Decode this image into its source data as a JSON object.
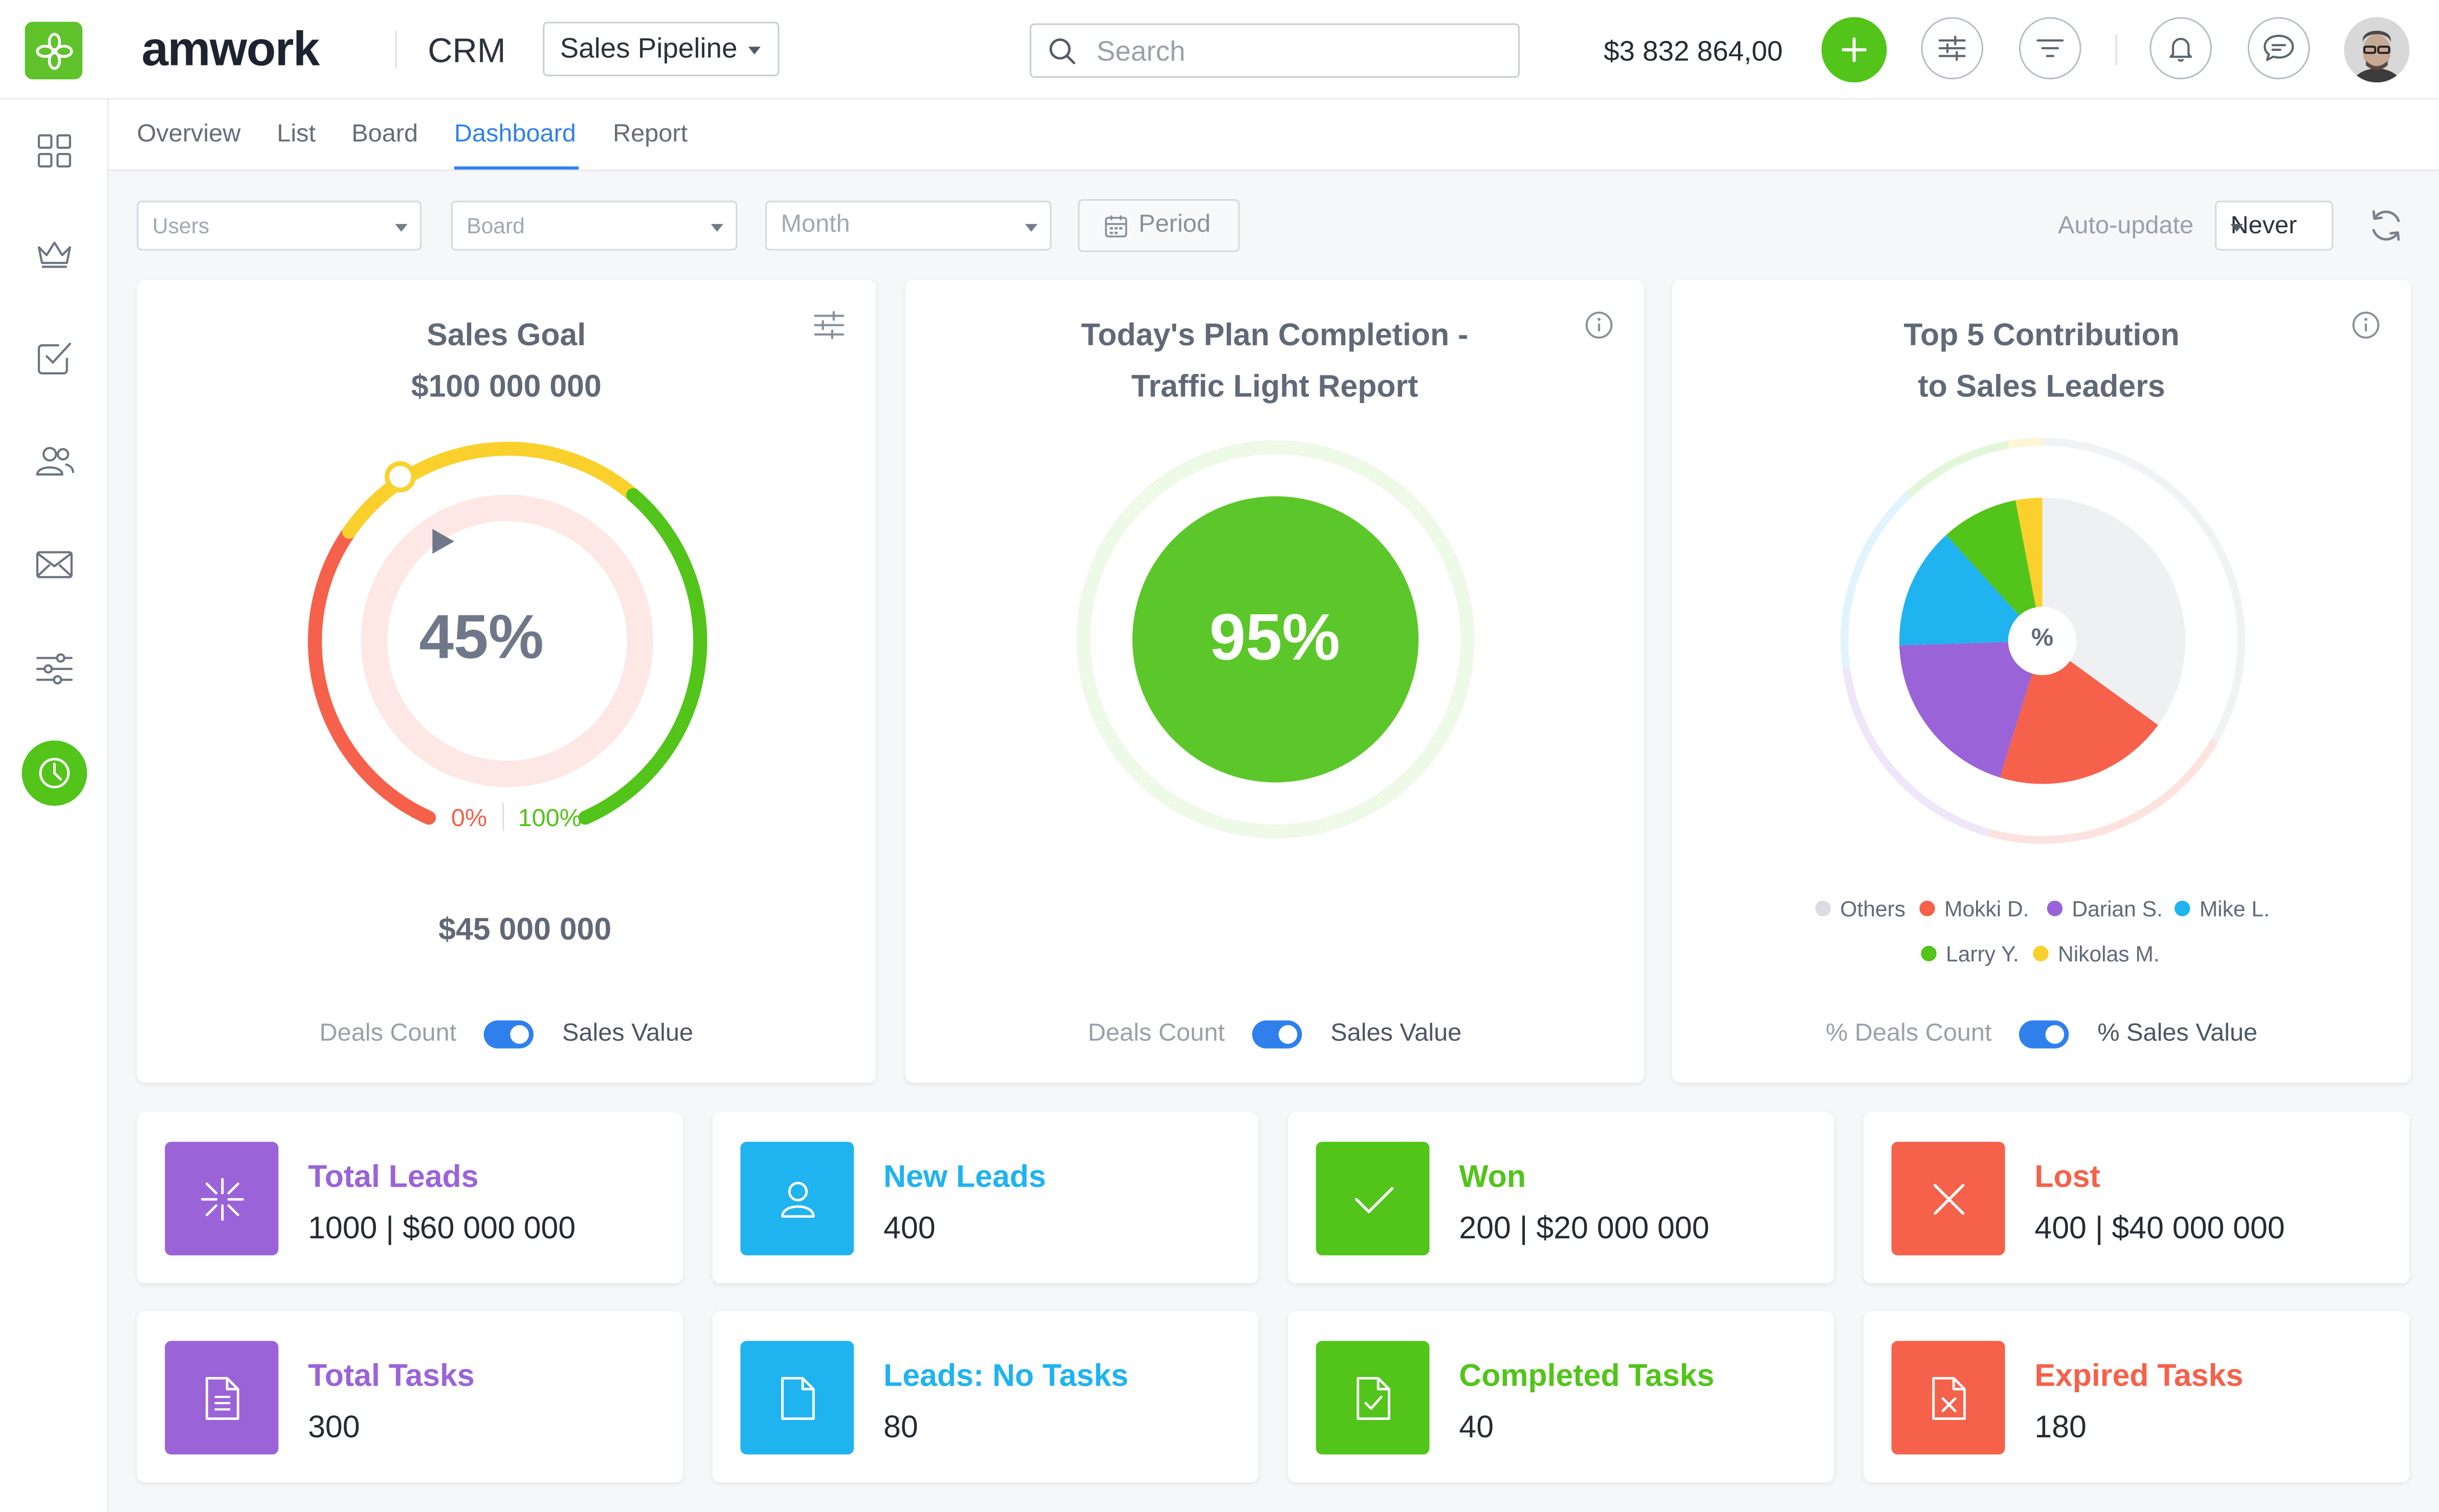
{
  "app": {
    "brand": "amwork",
    "name": "CRM",
    "pipeline": "Sales Pipeline",
    "search_placeholder": "Search",
    "balance": "$3 832 864,00"
  },
  "sidebar": {
    "items": [
      {
        "icon": "dashboard-grid-icon",
        "active": false
      },
      {
        "icon": "crown-icon",
        "active": false
      },
      {
        "icon": "checkbox-icon",
        "active": false
      },
      {
        "icon": "users-icon",
        "active": false
      },
      {
        "icon": "mail-icon",
        "active": false
      },
      {
        "icon": "settings-sliders-icon",
        "active": false
      },
      {
        "icon": "clock-icon",
        "active": true
      }
    ]
  },
  "tabs": {
    "overview": "Overview",
    "list": "List",
    "board": "Board",
    "dashboard": "Dashboard",
    "report": "Report",
    "active": "Dashboard"
  },
  "filters": {
    "users": "Users",
    "board": "Board",
    "month": "Month",
    "period": "Period",
    "auto_update_label": "Auto-update",
    "auto_update_value": "Never"
  },
  "sales_goal": {
    "title": "Sales Goal",
    "goal": "$100 000 000",
    "percent": "45%",
    "min_label": "0%",
    "max_label": "100%",
    "current": "$45 000 000",
    "toggle_off": "Deals Count",
    "toggle_on": "Sales Value"
  },
  "plan_completion": {
    "title_line1": "Today's Plan Completion -",
    "title_line2": "Traffic Light Report",
    "percent": "95%",
    "toggle_off": "Deals Count",
    "toggle_on": "Sales Value"
  },
  "top5": {
    "title_line1": "Top 5 Contribution",
    "title_line2": "to Sales Leaders",
    "center_label": "%",
    "legend": [
      {
        "name": "Others",
        "color": "#d9dce1"
      },
      {
        "name": "Mokki D.",
        "color": "#f5614a"
      },
      {
        "name": "Darian S.",
        "color": "#9b63d8"
      },
      {
        "name": "Mike L.",
        "color": "#1fb3ef"
      },
      {
        "name": "Larry Y.",
        "color": "#52c41a"
      },
      {
        "name": "Nikolas M.",
        "color": "#fad02c"
      }
    ],
    "toggle_off": "% Deals Count",
    "toggle_on": "% Sales Value"
  },
  "stats": [
    {
      "title": "Total Leads",
      "value": "1000 | $60 000 000",
      "color": "#9b63d8",
      "icon": "leads-burst-icon"
    },
    {
      "title": "New Leads",
      "value": "400",
      "color": "#1fb3ef",
      "icon": "person-icon"
    },
    {
      "title": "Won",
      "value": "200 | $20 000 000",
      "color": "#52c41a",
      "icon": "checkmark-icon"
    },
    {
      "title": "Lost",
      "value": "400 | $40 000 000",
      "color": "#f5614a",
      "icon": "x-icon"
    },
    {
      "title": "Total Tasks",
      "value": "300",
      "color": "#9b63d8",
      "icon": "document-lines-icon"
    },
    {
      "title": "Leads: No Tasks",
      "value": "80",
      "color": "#1fb3ef",
      "icon": "document-blank-icon"
    },
    {
      "title": "Completed Tasks",
      "value": "40",
      "color": "#52c41a",
      "icon": "document-check-icon"
    },
    {
      "title": "Expired Tasks",
      "value": "180",
      "color": "#f5614a",
      "icon": "document-x-icon"
    }
  ]
}
